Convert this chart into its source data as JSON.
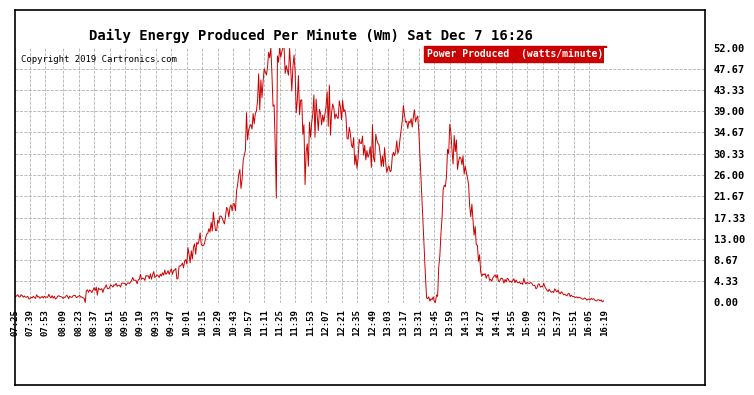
{
  "title": "Daily Energy Produced Per Minute (Wm) Sat Dec 7 16:26",
  "copyright": "Copyright 2019 Cartronics.com",
  "legend_label": "Power Produced  (watts/minute)",
  "legend_bg": "#cc0000",
  "legend_fg": "#ffffff",
  "line_color": "#cc0000",
  "bg_color": "#ffffff",
  "grid_color": "#aaaaaa",
  "yticks": [
    0.0,
    4.33,
    8.67,
    13.0,
    17.33,
    21.67,
    26.0,
    30.33,
    34.67,
    39.0,
    43.33,
    47.67,
    52.0
  ],
  "ymax": 52.0,
  "ymin": 0.0,
  "start_time": "07:25",
  "end_time": "16:19",
  "xtick_labels": [
    "07:25",
    "07:39",
    "07:53",
    "08:09",
    "08:23",
    "08:37",
    "08:51",
    "09:05",
    "09:19",
    "09:33",
    "09:47",
    "10:01",
    "10:15",
    "10:29",
    "10:43",
    "10:57",
    "11:11",
    "11:25",
    "11:39",
    "11:53",
    "12:07",
    "12:21",
    "12:35",
    "12:49",
    "13:03",
    "13:17",
    "13:31",
    "13:45",
    "13:59",
    "14:13",
    "14:27",
    "14:41",
    "14:55",
    "15:09",
    "15:23",
    "15:37",
    "15:51",
    "16:05",
    "16:19"
  ]
}
